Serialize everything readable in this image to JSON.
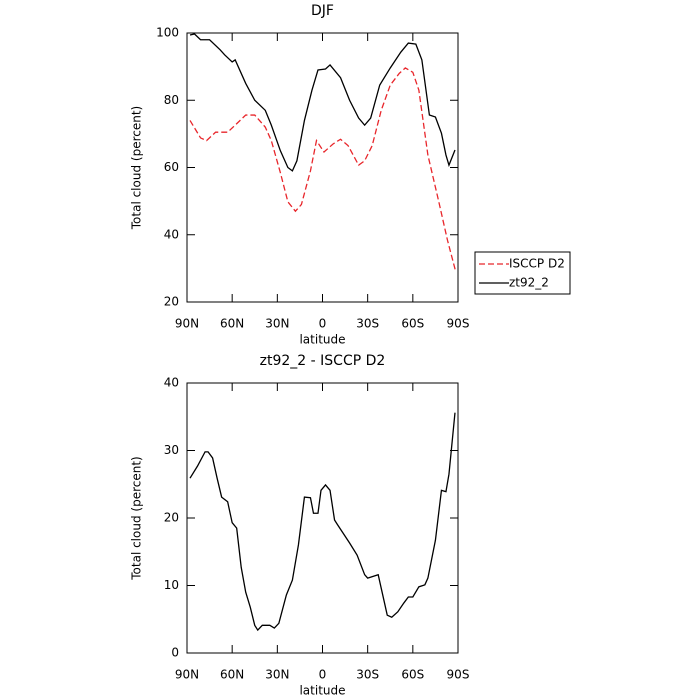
{
  "chart_data": [
    {
      "type": "line",
      "title": "DJF",
      "xlabel": "latitude",
      "ylabel": "Total cloud (percent)",
      "xlim": [
        90,
        -90
      ],
      "xticks": [
        {
          "value": 90,
          "label": "90N"
        },
        {
          "value": 60,
          "label": "60N"
        },
        {
          "value": 30,
          "label": "30N"
        },
        0,
        {
          "value": -30,
          "label": "30S"
        },
        {
          "value": -60,
          "label": "60S"
        },
        {
          "value": -90,
          "label": "90S"
        }
      ],
      "ylim": [
        20,
        100
      ],
      "yticks": [
        20,
        40,
        60,
        80,
        100
      ],
      "legend": "right",
      "series": [
        {
          "name": "ISCCP D2",
          "color": "#e8262b",
          "dash": true,
          "x": [
            88,
            81,
            77,
            71,
            63,
            58,
            51,
            45,
            38,
            34,
            28,
            23,
            18,
            14,
            8,
            4,
            -1,
            -7,
            -12,
            -17,
            -24,
            -28,
            -33,
            -39,
            -45,
            -51,
            -55,
            -60,
            -64,
            -70,
            -77,
            -83,
            -88.5
          ],
          "values": [
            74,
            68.8,
            68,
            70.5,
            70.5,
            72.6,
            75.6,
            75.6,
            72,
            68,
            58.5,
            49.8,
            47,
            49,
            59,
            68,
            64.6,
            67,
            68.4,
            66.5,
            60.7,
            62,
            66.5,
            77,
            84.5,
            88,
            89.6,
            88.3,
            83,
            63.7,
            50.3,
            38.4,
            29
          ]
        },
        {
          "name": "zt92_2",
          "color": "#000000",
          "dash": false,
          "x": [
            88,
            85,
            81,
            75,
            68,
            65,
            60,
            58,
            51,
            45,
            38,
            34,
            28,
            23,
            20,
            17,
            12,
            7,
            3,
            -2,
            -5,
            -12,
            -18,
            -24,
            -28,
            -32,
            -38,
            -45,
            -52,
            -57,
            -62,
            -66,
            -71,
            -75,
            -79,
            -82,
            -84,
            -88
          ],
          "values": [
            99.4,
            99.7,
            98,
            98,
            95,
            93.5,
            91.4,
            92,
            85,
            80,
            77,
            72.6,
            65,
            60,
            59,
            62,
            74,
            83,
            89,
            89.3,
            90.5,
            86.7,
            80,
            74.7,
            72.6,
            74.7,
            84.5,
            89.6,
            94.3,
            97,
            96.7,
            92,
            75.6,
            75,
            70.2,
            63.7,
            60.7,
            65.2
          ]
        }
      ]
    },
    {
      "type": "line",
      "title": "zt92_2 - ISCCP D2",
      "xlabel": "latitude",
      "ylabel": "Total cloud (percent)",
      "xlim": [
        90,
        -90
      ],
      "xticks": [
        {
          "value": 90,
          "label": "90N"
        },
        {
          "value": 60,
          "label": "60N"
        },
        {
          "value": 30,
          "label": "30N"
        },
        0,
        {
          "value": -30,
          "label": "30S"
        },
        {
          "value": -60,
          "label": "60S"
        },
        {
          "value": -90,
          "label": "90S"
        }
      ],
      "ylim": [
        0,
        40
      ],
      "yticks": [
        0,
        10,
        20,
        30,
        40
      ],
      "series": [
        {
          "color": "#000000",
          "dash": false,
          "x": [
            88,
            83,
            78,
            76,
            73,
            70,
            67,
            63,
            60,
            57,
            54,
            51,
            48,
            45,
            43,
            40,
            35,
            32,
            29,
            24,
            20,
            16,
            12,
            8,
            6,
            3,
            1,
            -2,
            -5,
            -8,
            -10,
            -18,
            -23,
            -28,
            -30,
            -37,
            -40,
            -43,
            -46,
            -50,
            -54,
            -57,
            -60,
            -64,
            -68,
            -70,
            -75,
            -79,
            -82,
            -84,
            -88
          ],
          "values": [
            25.9,
            27.7,
            29.8,
            29.8,
            28.9,
            25.9,
            23.1,
            22.4,
            19.3,
            18.5,
            12.7,
            9,
            6.8,
            4.1,
            3.4,
            4.1,
            4.1,
            3.7,
            4.4,
            8.6,
            10.8,
            16,
            23.1,
            23,
            20.7,
            20.7,
            24.1,
            24.9,
            24.1,
            19.7,
            19,
            16.3,
            14.5,
            11.6,
            11.1,
            11.6,
            8.6,
            5.6,
            5.3,
            6.1,
            7.4,
            8.3,
            8.3,
            9.8,
            10.1,
            11.1,
            16.7,
            24.1,
            23.9,
            26.5,
            35.6
          ]
        }
      ]
    }
  ]
}
